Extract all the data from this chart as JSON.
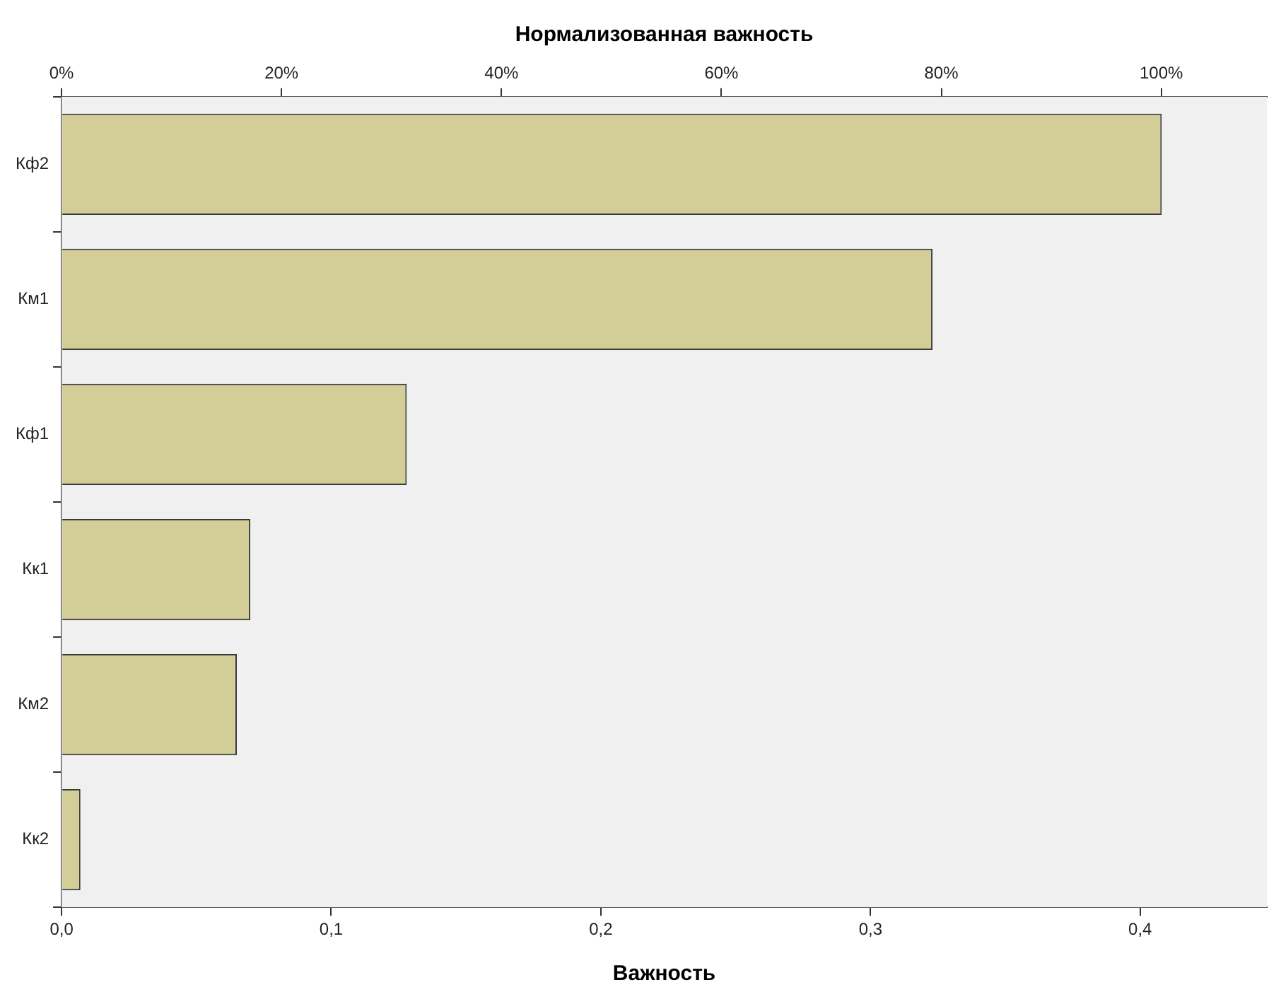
{
  "chart_data": {
    "type": "bar",
    "orientation": "horizontal",
    "x2label": "Нормализованная важность",
    "xlabel": "Важность",
    "categories": [
      "Кф2",
      "Км1",
      "Кф1",
      "Кк1",
      "Км2",
      "Кк2"
    ],
    "values": [
      0.408,
      0.323,
      0.128,
      0.07,
      0.065,
      0.007
    ],
    "color": "#d3ce97",
    "xlim": [
      0,
      0.447
    ],
    "xticks": [
      {
        "value": 0,
        "label": "0,0"
      },
      {
        "value": 0.1,
        "label": "0,1"
      },
      {
        "value": 0.2,
        "label": "0,2"
      },
      {
        "value": 0.3,
        "label": "0,3"
      },
      {
        "value": 0.4,
        "label": "0,4"
      }
    ],
    "x2lim": [
      0,
      109.6
    ],
    "x2ticks": [
      {
        "value": 0,
        "label": "0%"
      },
      {
        "value": 20,
        "label": "20%"
      },
      {
        "value": 40,
        "label": "40%"
      },
      {
        "value": 60,
        "label": "60%"
      },
      {
        "value": 80,
        "label": "80%"
      },
      {
        "value": 100,
        "label": "100%"
      }
    ],
    "legend": false
  }
}
